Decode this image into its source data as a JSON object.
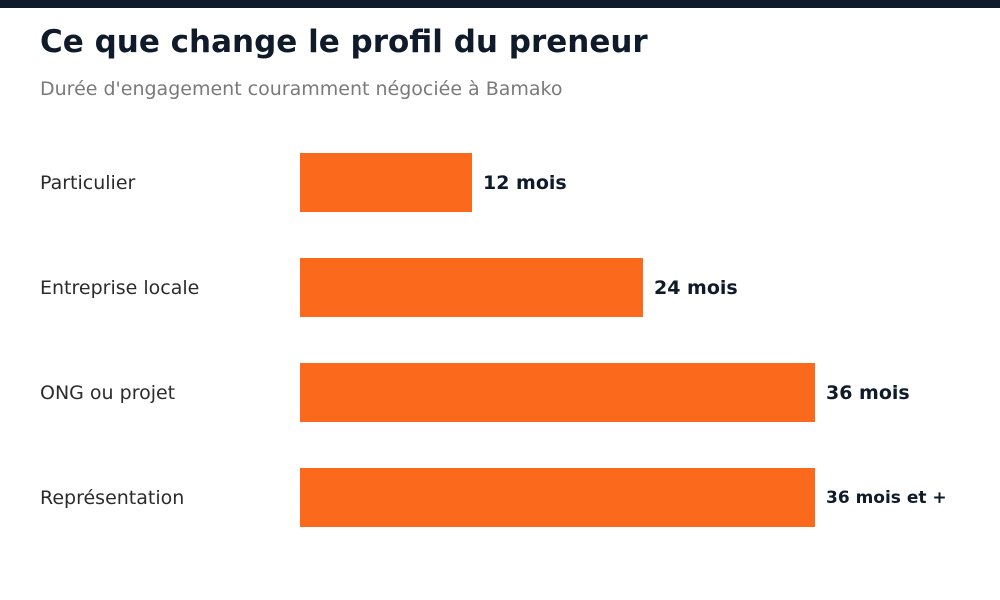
{
  "header": {
    "title": "Ce que change le profil du preneur",
    "subtitle": "Durée d'engagement couramment négociée à Bamako"
  },
  "colors": {
    "bar": "#fb6a1c",
    "top_bar": "#0f1b2a",
    "title": "#0f1b2a",
    "subtitle": "#7a7a7a",
    "category_text": "#2b2b2b",
    "value_text": "#0f1b2a"
  },
  "chart_data": {
    "type": "bar",
    "orientation": "horizontal",
    "title": "Ce que change le profil du preneur",
    "subtitle": "Durée d'engagement couramment négociée à Bamako",
    "categories": [
      "Particulier",
      "Entreprise locale",
      "ONG ou projet",
      "Représentation"
    ],
    "values": [
      12,
      24,
      36,
      36
    ],
    "value_labels": [
      "12 mois",
      "24 mois",
      "36 mois",
      "36 mois et +"
    ],
    "unit": "mois",
    "xlim": [
      0,
      36
    ],
    "grid": false,
    "legend": "none"
  }
}
